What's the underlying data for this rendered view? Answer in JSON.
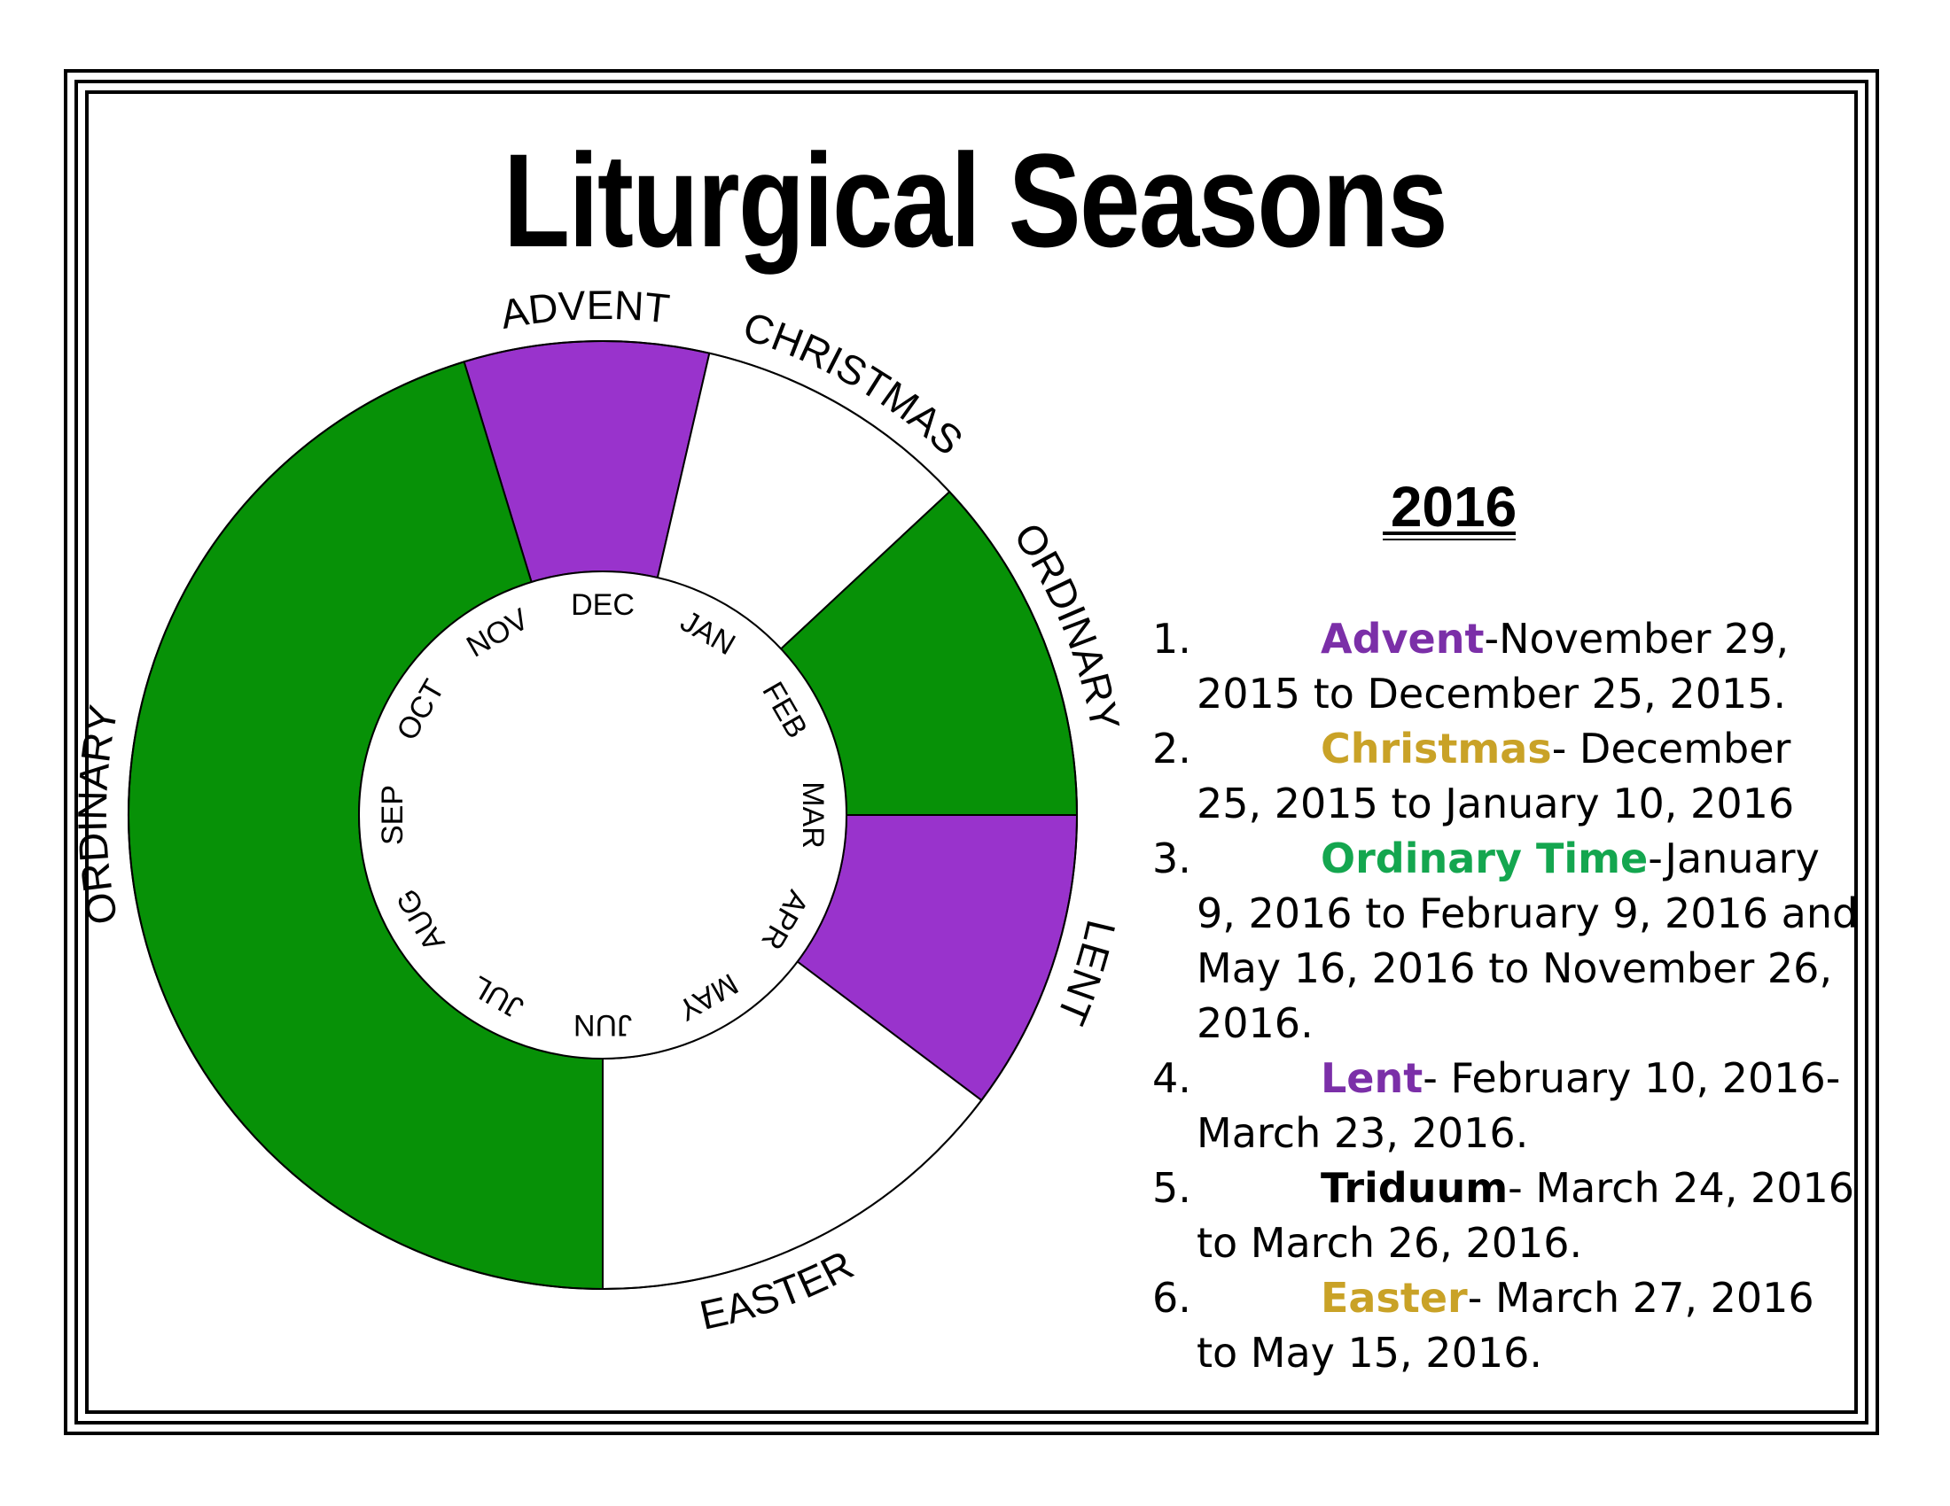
{
  "title": "Liturgical Seasons",
  "year": "2016",
  "colors": {
    "green": "#079107",
    "purple": "#9933cc",
    "gold": "#c9a227",
    "ordinary_text": "#14a64f",
    "white": "#ffffff"
  },
  "wheel": {
    "segments": [
      {
        "season": "advent",
        "label": "ADVENT",
        "color": "purple"
      },
      {
        "season": "christmas",
        "label": "CHRISTMAS",
        "color": "white"
      },
      {
        "season": "ordinary-1",
        "label": "ORDINARY",
        "color": "green"
      },
      {
        "season": "lent",
        "label": "LENT",
        "color": "purple"
      },
      {
        "season": "easter",
        "label": "EASTER",
        "color": "white"
      },
      {
        "season": "ordinary-2",
        "label": "ORDINARY",
        "color": "green"
      }
    ],
    "months": [
      "DEC",
      "JAN",
      "FEB",
      "MAR",
      "APR",
      "MAY",
      "JUN",
      "JUL",
      "AUG",
      "SEP",
      "OCT",
      "NOV"
    ]
  },
  "legend": [
    {
      "num": "1.",
      "name": "Advent",
      "name_color": "purple",
      "sep": "-",
      "text": "November 29, 2015 to December 25, 2015."
    },
    {
      "num": "2.",
      "name": "Christmas",
      "name_color": "gold",
      "sep": "- ",
      "text": "December 25, 2015 to January 10, 2016"
    },
    {
      "num": "3.",
      "name": "Ordinary Time",
      "name_color": "ordinary_text",
      "sep": "-",
      "text": "January 9, 2016 to February 9, 2016 and May 16, 2016 to November 26, 2016."
    },
    {
      "num": "4.",
      "name": "Lent",
      "name_color": "purple",
      "sep": "- ",
      "text": "February 10, 2016-March 23, 2016."
    },
    {
      "num": "5.",
      "name": "Triduum",
      "name_color": "black",
      "sep": "- ",
      "text": "March 24, 2016 to March 26, 2016."
    },
    {
      "num": "6.",
      "name": "Easter",
      "name_color": "gold",
      "sep": "- ",
      "text": "March 27, 2016 to May 15, 2016."
    }
  ]
}
